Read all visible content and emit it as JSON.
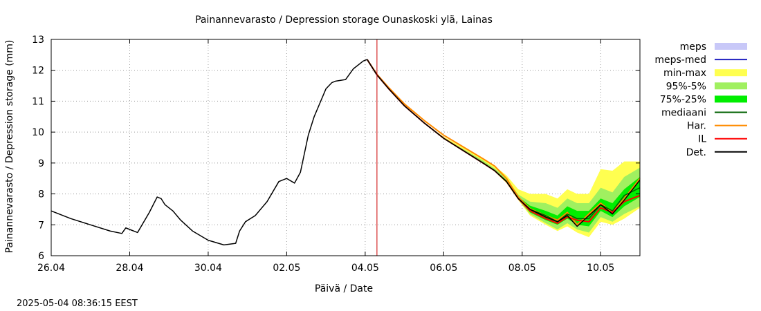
{
  "chart_data": {
    "type": "line",
    "title": "Painannevarasto / Depression storage   Ounaskoski ylä, Lainas",
    "xlabel": "Päivä / Date",
    "ylabel": "Painannevarasto / Depression storage (mm)",
    "timestamp": "2025-05-04  08:36:15 EEST",
    "x_ticks": [
      "26.04",
      "28.04",
      "30.04",
      "02.05",
      "04.05",
      "06.05",
      "08.05",
      "10.05"
    ],
    "x_tick_days": [
      0,
      2,
      4,
      6,
      8,
      10,
      12,
      14
    ],
    "xlim_days": [
      0,
      15
    ],
    "y_ticks": [
      "6",
      "7",
      "8",
      "9",
      "10",
      "11",
      "12",
      "13"
    ],
    "ylim": [
      6,
      13
    ],
    "grid": true,
    "legend_position": "right",
    "forecast_start_day": 8.3,
    "colors": {
      "meps": "#c8c8f8",
      "meps_med": "#2020c0",
      "minmax": "#ffff50",
      "p95_5": "#a0f060",
      "p75_25": "#00ee00",
      "median": "#006000",
      "har": "#ff8c00",
      "il": "#ff0000",
      "det": "#000000",
      "nowline": "#cc0000",
      "grid": "#9a9a9a"
    },
    "legend": [
      {
        "key": "meps",
        "label": "meps",
        "kind": "band",
        "color": "#c8c8f8"
      },
      {
        "key": "meps_med",
        "label": "meps-med",
        "kind": "line",
        "color": "#2020c0"
      },
      {
        "key": "minmax",
        "label": "min-max",
        "kind": "band",
        "color": "#ffff50"
      },
      {
        "key": "p95_5",
        "label": "95%-5%",
        "kind": "band",
        "color": "#a0f060"
      },
      {
        "key": "p75_25",
        "label": "75%-25%",
        "kind": "band",
        "color": "#00ee00"
      },
      {
        "key": "median",
        "label": "mediaani",
        "kind": "line",
        "color": "#006000"
      },
      {
        "key": "har",
        "label": "Har.",
        "kind": "line",
        "color": "#ff8c00"
      },
      {
        "key": "il",
        "label": "IL",
        "kind": "line",
        "color": "#ff0000"
      },
      {
        "key": "det",
        "label": "Det.",
        "kind": "line",
        "color": "#000000"
      }
    ],
    "observed": {
      "x": [
        0,
        0.5,
        1.0,
        1.5,
        1.8,
        1.9,
        2.0,
        2.2,
        2.5,
        2.7,
        2.8,
        2.9,
        3.1,
        3.3,
        3.6,
        4.0,
        4.4,
        4.7,
        4.8,
        4.95,
        5.2,
        5.5,
        5.8,
        6.0,
        6.2,
        6.35,
        6.55,
        6.7,
        6.8,
        7.0,
        7.15,
        7.25,
        7.5,
        7.7,
        7.95,
        8.05
      ],
      "y": [
        7.45,
        7.2,
        7.0,
        6.8,
        6.72,
        6.9,
        6.85,
        6.75,
        7.4,
        7.9,
        7.85,
        7.65,
        7.45,
        7.15,
        6.8,
        6.5,
        6.35,
        6.4,
        6.8,
        7.1,
        7.3,
        7.75,
        8.4,
        8.5,
        8.35,
        8.7,
        9.9,
        10.5,
        10.8,
        11.4,
        11.6,
        11.65,
        11.7,
        12.05,
        12.3,
        12.35
      ]
    },
    "forecast_x": [
      8.05,
      8.3,
      8.6,
      9.0,
      9.5,
      10.0,
      10.5,
      11.0,
      11.3,
      11.6,
      11.9,
      12.2,
      12.6,
      12.9,
      13.15,
      13.4,
      13.7,
      14.0,
      14.3,
      14.6,
      15.0
    ],
    "det": [
      12.35,
      11.85,
      11.4,
      10.85,
      10.3,
      9.8,
      9.4,
      9.0,
      8.75,
      8.4,
      7.85,
      7.5,
      7.25,
      7.1,
      7.3,
      6.95,
      7.3,
      7.65,
      7.35,
      7.8,
      8.45
    ],
    "har_offset": [
      0,
      0.02,
      0.04,
      0.06,
      0.08,
      0.1,
      0.12,
      0.14,
      0.15,
      0.1,
      0.05,
      0.02,
      0.05,
      0.05,
      0.1,
      0.05,
      0.05,
      0.05,
      0.05,
      0.05,
      0.05
    ],
    "il": [
      12.35,
      11.85,
      11.4,
      10.85,
      10.3,
      9.8,
      9.4,
      9.0,
      8.75,
      8.4,
      7.85,
      7.45,
      7.2,
      7.05,
      7.25,
      7.15,
      7.1,
      7.55,
      7.4,
      7.75,
      7.95
    ],
    "median": [
      12.35,
      11.85,
      11.4,
      10.85,
      10.3,
      9.8,
      9.4,
      9.0,
      8.75,
      8.4,
      7.85,
      7.5,
      7.3,
      7.1,
      7.35,
      7.2,
      7.2,
      7.65,
      7.45,
      7.95,
      8.2
    ],
    "band_minmax": {
      "low": [
        12.35,
        11.85,
        11.4,
        10.85,
        10.3,
        9.8,
        9.4,
        9.0,
        8.72,
        8.35,
        7.8,
        7.3,
        7.0,
        6.8,
        6.95,
        6.75,
        6.6,
        7.1,
        7.0,
        7.2,
        7.55
      ],
      "high": [
        12.35,
        11.85,
        11.4,
        10.85,
        10.3,
        9.85,
        9.5,
        9.15,
        8.9,
        8.6,
        8.15,
        8.0,
        8.0,
        7.85,
        8.15,
        8.0,
        8.0,
        8.8,
        8.75,
        9.05,
        9.05
      ]
    },
    "band_p95_5": {
      "low": [
        12.35,
        11.85,
        11.4,
        10.85,
        10.3,
        9.8,
        9.4,
        9.0,
        8.73,
        8.37,
        7.82,
        7.35,
        7.05,
        6.85,
        7.05,
        6.85,
        6.75,
        7.25,
        7.1,
        7.35,
        7.6
      ],
      "high": [
        12.35,
        11.85,
        11.4,
        10.85,
        10.3,
        9.82,
        9.45,
        9.08,
        8.82,
        8.5,
        7.98,
        7.75,
        7.7,
        7.55,
        7.85,
        7.7,
        7.7,
        8.2,
        8.05,
        8.55,
        8.85
      ]
    },
    "band_p75_25": {
      "low": [
        12.35,
        11.85,
        11.4,
        10.85,
        10.3,
        9.8,
        9.4,
        9.0,
        8.74,
        8.38,
        7.83,
        7.4,
        7.15,
        7.0,
        7.2,
        7.0,
        6.95,
        7.45,
        7.25,
        7.6,
        7.9
      ],
      "high": [
        12.35,
        11.85,
        11.4,
        10.85,
        10.3,
        9.81,
        9.42,
        9.03,
        8.78,
        8.44,
        7.9,
        7.62,
        7.45,
        7.3,
        7.6,
        7.45,
        7.45,
        7.85,
        7.7,
        8.15,
        8.55
      ]
    }
  }
}
